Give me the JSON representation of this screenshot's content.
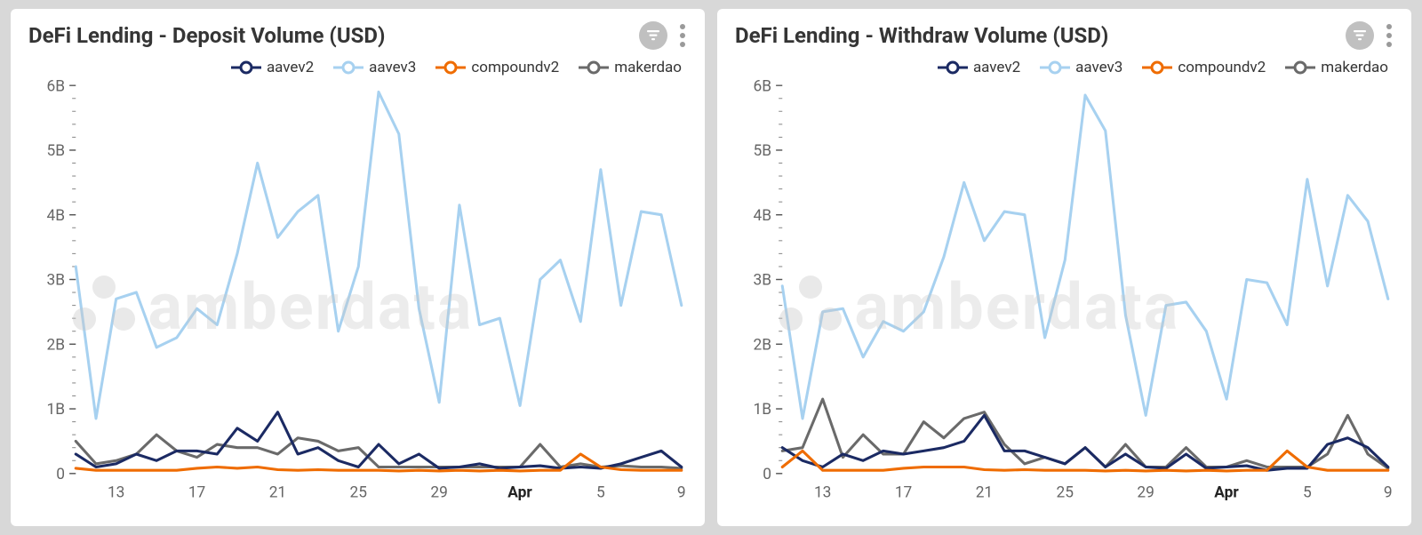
{
  "watermark": "amberdata",
  "layout": {
    "columns": 2,
    "panel_bg": "#ffffff",
    "page_bg": "#d8d8d8"
  },
  "series_style": {
    "aavev2": {
      "color": "#1b2a63",
      "marker": "circle",
      "line_width": 3,
      "marker_r": 6,
      "marker_stroke": 3
    },
    "aavev3": {
      "color": "#a7d1f0",
      "marker": "circle",
      "line_width": 3,
      "marker_r": 6,
      "marker_stroke": 3
    },
    "compoundv2": {
      "color": "#ef6c00",
      "marker": "circle",
      "line_width": 3,
      "marker_r": 6,
      "marker_stroke": 3
    },
    "makerdao": {
      "color": "#6a6a6a",
      "marker": "circle",
      "line_width": 3,
      "marker_r": 6,
      "marker_stroke": 3
    }
  },
  "axes": {
    "ylim": [
      0,
      6
    ],
    "y_ticks": [
      0,
      1,
      2,
      3,
      4,
      5,
      6
    ],
    "y_tick_labels": [
      "0",
      "1B",
      "2B",
      "3B",
      "4B",
      "5B",
      "6B"
    ],
    "y_minor_per_major": 5,
    "x_count": 31,
    "x_tick_positions": [
      2,
      6,
      10,
      14,
      18,
      22,
      26,
      30
    ],
    "x_tick_labels": [
      "13",
      "17",
      "21",
      "25",
      "29",
      "Apr",
      "5",
      "9"
    ],
    "x_bold_index": 5,
    "tick_color": "#666666",
    "tick_font_size": 17,
    "grid": false
  },
  "legend_order": [
    "aavev2",
    "aavev3",
    "compoundv2",
    "makerdao"
  ],
  "legend_labels": {
    "aavev2": "aavev2",
    "aavev3": "aavev3",
    "compoundv2": "compoundv2",
    "makerdao": "makerdao"
  },
  "panels": [
    {
      "id": "deposit",
      "title": "DeFi Lending - Deposit Volume (USD)",
      "series": {
        "aavev3": [
          3.2,
          0.85,
          2.7,
          2.8,
          1.95,
          2.1,
          2.55,
          2.3,
          3.4,
          4.8,
          3.65,
          4.05,
          4.3,
          2.2,
          3.2,
          5.9,
          5.25,
          2.55,
          1.1,
          4.15,
          2.3,
          2.4,
          1.05,
          3.0,
          3.3,
          2.35,
          4.7,
          2.6,
          4.05,
          4.0,
          2.6
        ],
        "aavev2": [
          0.3,
          0.1,
          0.15,
          0.3,
          0.2,
          0.35,
          0.35,
          0.3,
          0.7,
          0.5,
          0.95,
          0.3,
          0.4,
          0.2,
          0.1,
          0.45,
          0.15,
          0.3,
          0.08,
          0.1,
          0.15,
          0.08,
          0.1,
          0.12,
          0.08,
          0.1,
          0.08,
          0.15,
          0.25,
          0.35,
          0.1
        ],
        "compoundv2": [
          0.08,
          0.05,
          0.05,
          0.05,
          0.05,
          0.05,
          0.08,
          0.1,
          0.08,
          0.1,
          0.06,
          0.05,
          0.06,
          0.05,
          0.05,
          0.05,
          0.04,
          0.05,
          0.04,
          0.05,
          0.04,
          0.05,
          0.04,
          0.05,
          0.05,
          0.3,
          0.1,
          0.06,
          0.05,
          0.05,
          0.05
        ],
        "makerdao": [
          0.5,
          0.15,
          0.2,
          0.3,
          0.6,
          0.35,
          0.25,
          0.45,
          0.4,
          0.4,
          0.3,
          0.55,
          0.5,
          0.35,
          0.4,
          0.1,
          0.1,
          0.1,
          0.1,
          0.1,
          0.1,
          0.1,
          0.1,
          0.45,
          0.1,
          0.15,
          0.1,
          0.12,
          0.1,
          0.1,
          0.08
        ]
      }
    },
    {
      "id": "withdraw",
      "title": "DeFi Lending - Withdraw Volume (USD)",
      "series": {
        "aavev3": [
          2.9,
          0.85,
          2.5,
          2.55,
          1.8,
          2.35,
          2.2,
          2.5,
          3.35,
          4.5,
          3.6,
          4.05,
          4.0,
          2.1,
          3.3,
          5.85,
          5.3,
          2.45,
          0.9,
          2.6,
          2.65,
          2.2,
          1.15,
          3.0,
          2.95,
          2.3,
          4.55,
          2.9,
          4.3,
          3.9,
          2.7
        ],
        "aavev2": [
          0.4,
          0.2,
          0.1,
          0.3,
          0.2,
          0.35,
          0.3,
          0.35,
          0.4,
          0.5,
          0.9,
          0.35,
          0.35,
          0.25,
          0.15,
          0.4,
          0.1,
          0.3,
          0.1,
          0.08,
          0.3,
          0.08,
          0.1,
          0.12,
          0.05,
          0.08,
          0.08,
          0.45,
          0.55,
          0.4,
          0.1
        ],
        "compoundv2": [
          0.1,
          0.35,
          0.05,
          0.05,
          0.05,
          0.05,
          0.08,
          0.1,
          0.1,
          0.1,
          0.06,
          0.05,
          0.06,
          0.05,
          0.05,
          0.05,
          0.04,
          0.05,
          0.04,
          0.05,
          0.04,
          0.05,
          0.04,
          0.05,
          0.05,
          0.35,
          0.1,
          0.05,
          0.05,
          0.05,
          0.05
        ],
        "makerdao": [
          0.35,
          0.4,
          1.15,
          0.25,
          0.6,
          0.3,
          0.3,
          0.8,
          0.55,
          0.85,
          0.95,
          0.45,
          0.15,
          0.25,
          0.15,
          0.4,
          0.1,
          0.45,
          0.1,
          0.1,
          0.4,
          0.1,
          0.1,
          0.2,
          0.1,
          0.1,
          0.1,
          0.3,
          0.9,
          0.3,
          0.08
        ]
      }
    }
  ]
}
